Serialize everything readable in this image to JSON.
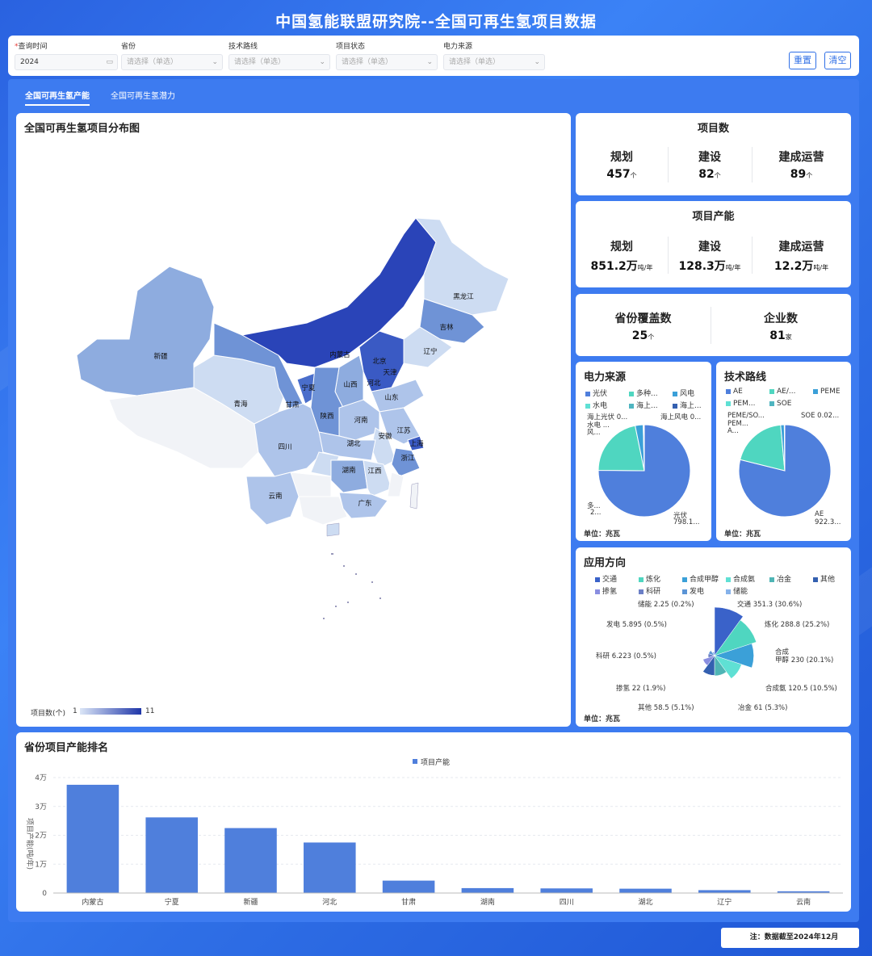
{
  "page": {
    "title": "中国氢能联盟研究院--全国可再生氢项目数据"
  },
  "filters": [
    {
      "label": "查询时间",
      "required": true,
      "value": "2024",
      "icon": "calendar-icon"
    },
    {
      "label": "省份",
      "required": false,
      "placeholder": "请选择（单选）"
    },
    {
      "label": "技术路线",
      "required": false,
      "placeholder": "请选择（单选）"
    },
    {
      "label": "项目状态",
      "required": false,
      "placeholder": "请选择（单选）"
    },
    {
      "label": "电力来源",
      "required": false,
      "placeholder": "请选择（单选）"
    }
  ],
  "buttons": {
    "reset": "重置",
    "clear": "清空"
  },
  "tabs": [
    {
      "label": "全国可再生氢产能",
      "active": true
    },
    {
      "label": "全国可再生氢潜力",
      "active": false
    }
  ],
  "map": {
    "title": "全国可再生氢项目分布图",
    "legend_label": "项目数(个)",
    "legend_min": "1",
    "legend_max": "11",
    "color_low": "#dbe6f7",
    "color_high": "#1f36a8",
    "provinces": [
      "黑龙江",
      "吉林",
      "辽宁",
      "内蒙古",
      "北京",
      "天津",
      "河北",
      "山西",
      "山东",
      "宁夏",
      "甘肃",
      "陕西",
      "河南",
      "江苏",
      "上海",
      "安徽",
      "湖北",
      "浙江",
      "新疆",
      "青海",
      "四川",
      "湖南",
      "江西",
      "云南",
      "广东"
    ]
  },
  "stats": {
    "project_count": {
      "title": "项目数",
      "items": [
        {
          "label": "规划",
          "value": "457",
          "unit": "个"
        },
        {
          "label": "建设",
          "value": "82",
          "unit": "个"
        },
        {
          "label": "建成运营",
          "value": "89",
          "unit": "个"
        }
      ]
    },
    "project_capacity": {
      "title": "项目产能",
      "items": [
        {
          "label": "规划",
          "value": "851.2万",
          "unit": "吨/年"
        },
        {
          "label": "建设",
          "value": "128.3万",
          "unit": "吨/年"
        },
        {
          "label": "建成运营",
          "value": "12.2万",
          "unit": "吨/年"
        }
      ]
    },
    "coverage": {
      "items": [
        {
          "label": "省份覆盖数",
          "value": "25",
          "unit": "个"
        },
        {
          "label": "企业数",
          "value": "81",
          "unit": "家"
        }
      ]
    }
  },
  "power_source": {
    "title": "电力来源",
    "unit_label": "单位：兆瓦",
    "legend": [
      {
        "name": "光伏",
        "color": "#4f7fdc"
      },
      {
        "name": "多种...",
        "color": "#4fd6c0"
      },
      {
        "name": "风电",
        "color": "#3ba0d8"
      },
      {
        "name": "水电",
        "color": "#5fe0d4"
      },
      {
        "name": "海上...",
        "color": "#4fb5c0"
      },
      {
        "name": "海上...",
        "color": "#3460b0"
      }
    ],
    "labels": [
      "海上光伏 0...",
      "水电 ...",
      "风...",
      "海上风电 0...",
      "多...",
      "2...",
      "光伏",
      "798.1..."
    ],
    "chart_data": {
      "type": "pie",
      "slices": [
        {
          "name": "光伏",
          "value": 798.1,
          "color": "#4f7fdc"
        },
        {
          "name": "多种",
          "value": 230,
          "color": "#4fd6c0"
        },
        {
          "name": "风电",
          "value": 30,
          "color": "#3ba0d8"
        },
        {
          "name": "水电",
          "value": 3,
          "color": "#5fe0d4"
        },
        {
          "name": "海上光伏",
          "value": 0.5,
          "color": "#4fb5c0"
        },
        {
          "name": "海上风电",
          "value": 0.5,
          "color": "#3460b0"
        }
      ]
    }
  },
  "tech_route": {
    "title": "技术路线",
    "unit_label": "单位：兆瓦",
    "legend": [
      {
        "name": "AE",
        "color": "#4f7fdc"
      },
      {
        "name": "AE/...",
        "color": "#4fd6c0"
      },
      {
        "name": "PEME",
        "color": "#3ba0d8"
      },
      {
        "name": "PEM...",
        "color": "#5fe0d4"
      },
      {
        "name": "SOE",
        "color": "#4fb5c0"
      }
    ],
    "labels": [
      "PEME/SO...",
      "PEM...",
      "A...",
      "SOE 0.02...",
      "AE",
      "922.3..."
    ],
    "chart_data": {
      "type": "pie",
      "slices": [
        {
          "name": "AE",
          "value": 922.3,
          "color": "#4f7fdc"
        },
        {
          "name": "AE/PEM",
          "value": 230,
          "color": "#4fd6c0"
        },
        {
          "name": "PEME",
          "value": 15,
          "color": "#3ba0d8"
        },
        {
          "name": "PEM/SOE",
          "value": 2,
          "color": "#5fe0d4"
        },
        {
          "name": "SOE",
          "value": 0.02,
          "color": "#4fb5c0"
        }
      ]
    }
  },
  "application": {
    "title": "应用方向",
    "unit_label": "单位：兆瓦",
    "legend": [
      {
        "name": "交通",
        "color": "#3a62c9"
      },
      {
        "name": "炼化",
        "color": "#4fd6c0"
      },
      {
        "name": "合成甲醇",
        "color": "#3ba0d8"
      },
      {
        "name": "合成氨",
        "color": "#5fe0d4"
      },
      {
        "name": "冶金",
        "color": "#4fb5b5"
      },
      {
        "name": "其他",
        "color": "#3460b0"
      },
      {
        "name": "掺氢",
        "color": "#8a8ee0"
      },
      {
        "name": "科研",
        "color": "#6b7fc6"
      },
      {
        "name": "发电",
        "color": "#5b95d6"
      },
      {
        "name": "储能",
        "color": "#86b2ea"
      }
    ],
    "chart_data": {
      "type": "pie",
      "rose": true,
      "slices": [
        {
          "name": "交通",
          "value": 351.3,
          "pct": "30.6%",
          "color": "#3a62c9"
        },
        {
          "name": "炼化",
          "value": 288.8,
          "pct": "25.2%",
          "color": "#4fd6c0"
        },
        {
          "name": "合成甲醇",
          "value": 230,
          "pct": "20.1%",
          "color": "#3ba0d8"
        },
        {
          "name": "合成氨",
          "value": 120.5,
          "pct": "10.5%",
          "color": "#5fe0d4"
        },
        {
          "name": "冶金",
          "value": 61,
          "pct": "5.3%",
          "color": "#4fb5b5"
        },
        {
          "name": "其他",
          "value": 58.5,
          "pct": "5.1%",
          "color": "#3460b0"
        },
        {
          "name": "掺氢",
          "value": 22,
          "pct": "1.9%",
          "color": "#8a8ee0"
        },
        {
          "name": "科研",
          "value": 6.223,
          "pct": "0.5%",
          "color": "#6b7fc6"
        },
        {
          "name": "发电",
          "value": 5.895,
          "pct": "0.5%",
          "color": "#5b95d6"
        },
        {
          "name": "储能",
          "value": 2.25,
          "pct": "0.2%",
          "color": "#86b2ea"
        }
      ]
    },
    "labels": [
      "交通 351.3 (30.6%)",
      "炼化 288.8 (25.2%)",
      "合成",
      "甲醇 230 (20.1%)",
      "合成氨 120.5 (10.5%)",
      "冶金 61 (5.3%)",
      "其他 58.5 (5.1%)",
      "掺氢 22 (1.9%)",
      "科研 6.223 (0.5%)",
      "发电 5.895 (0.5%)",
      "储能 2.25 (0.2%)"
    ]
  },
  "ranking": {
    "title": "省份项目产能排名",
    "chart_data": {
      "type": "bar",
      "categories": [
        "内蒙古",
        "宁夏",
        "新疆",
        "河北",
        "甘肃",
        "湖南",
        "四川",
        "湖北",
        "辽宁",
        "云南"
      ],
      "series": [
        {
          "name": "项目产能",
          "values": [
            37500,
            26200,
            22500,
            17500,
            4300,
            1700,
            1600,
            1500,
            1000,
            600
          ]
        }
      ],
      "ylabel": "项目产能(吨/年)",
      "ylim": [
        0,
        40000
      ],
      "yticks": [
        "0",
        "1万",
        "2万",
        "3万",
        "4万"
      ],
      "color": "#4f7fdc"
    }
  },
  "footnote": "注：数据截至2024年12月"
}
